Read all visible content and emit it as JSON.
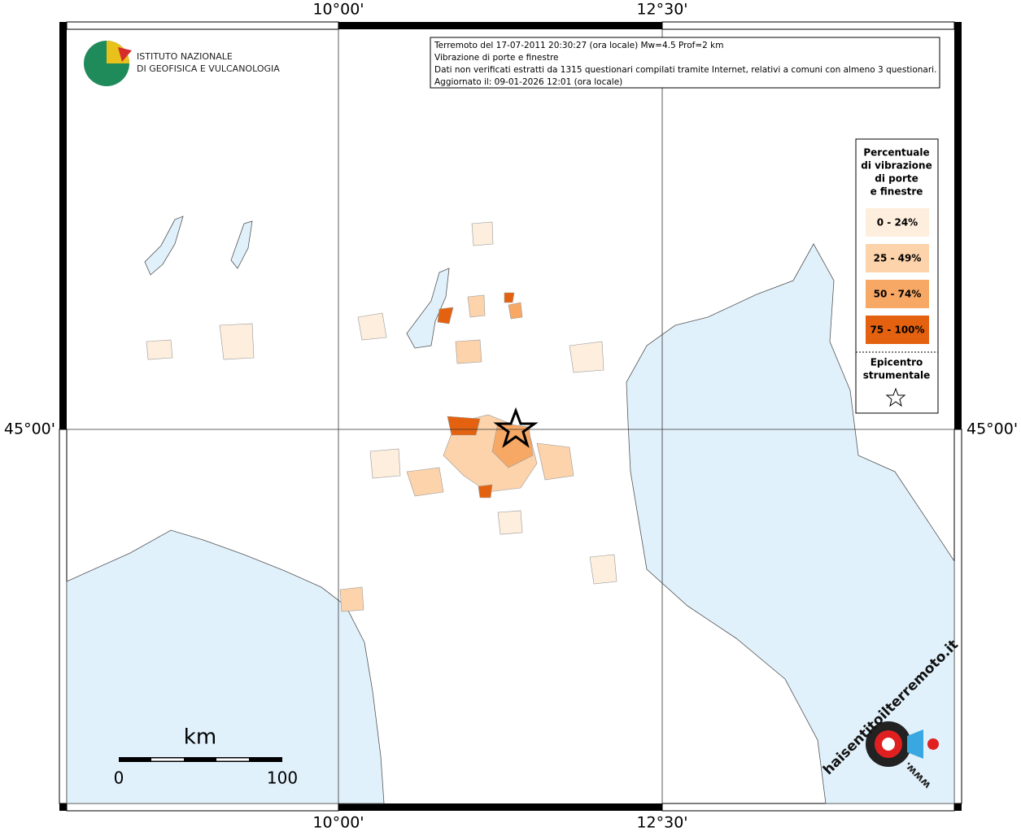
{
  "logo": {
    "line1": "ISTITUTO NAZIONALE",
    "line2": "DI GEOFISICA E VULCANOLOGIA"
  },
  "grid": {
    "lon_labels": [
      "10°00'",
      "12°30'"
    ],
    "lat_labels": [
      "45°00'"
    ]
  },
  "info": {
    "lines": [
      "Terremoto del 17-07-2011 20:30:27 (ora locale) Mw=4.5 Prof=2 km",
      "Vibrazione di porte e finestre",
      "Dati non verificati estratti da 1315 questionari compilati tramite Internet, relativi a comuni con almeno 3 questionari.",
      "Aggiornato il: 09-01-2026 12:01 (ora locale)"
    ]
  },
  "legend": {
    "title": [
      "Percentuale",
      "di vibrazione",
      "di porte",
      "e finestre"
    ],
    "classes": [
      {
        "label": "0 - 24%",
        "color": "#fdeedd"
      },
      {
        "label": "25 - 49%",
        "color": "#fcd3ab"
      },
      {
        "label": "50 - 74%",
        "color": "#f8a865"
      },
      {
        "label": "75 - 100%",
        "color": "#e4620f"
      }
    ],
    "epicenter": [
      "Epicentro",
      "strumentale"
    ]
  },
  "scale": {
    "unit": "km",
    "labels": [
      "0",
      "100"
    ]
  },
  "brand": {
    "name": "haisentitoilterremoto.it",
    "prefix": "www."
  }
}
